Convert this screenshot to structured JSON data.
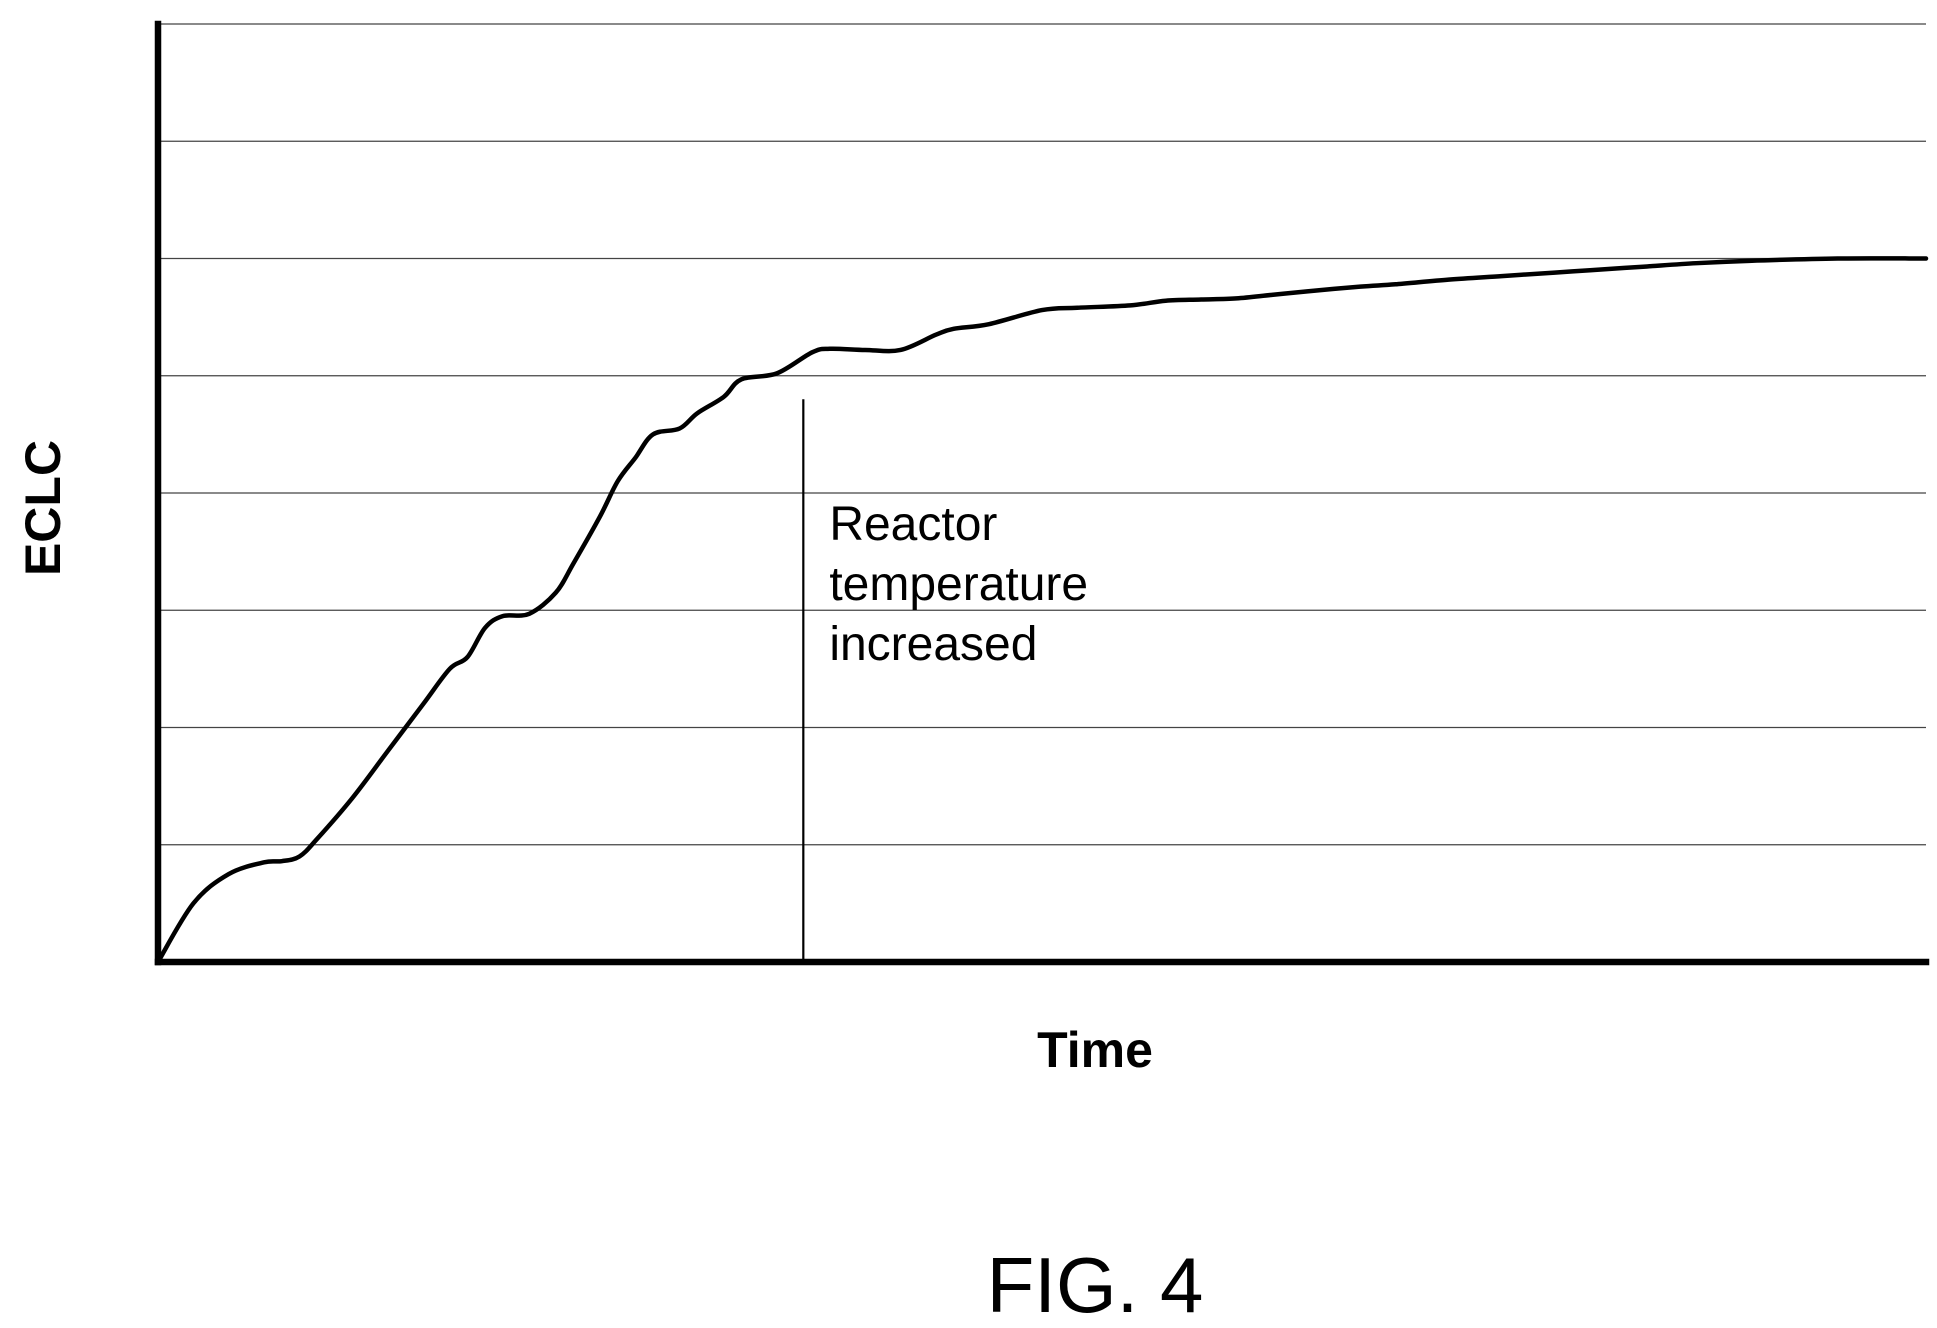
{
  "figure_label": "FIG. 4",
  "chart_data": {
    "type": "line",
    "title": "",
    "xlabel": "Time",
    "ylabel": "ECLC",
    "xlim": [
      0,
      100
    ],
    "ylim": [
      0,
      8
    ],
    "grid": true,
    "gridlines_y": [
      1,
      2,
      3,
      4,
      5,
      6,
      7,
      8
    ],
    "tick_labels": false,
    "series": [
      {
        "x": [
          0,
          2,
          4,
          6,
          7,
          8,
          9,
          11,
          13,
          15,
          16.5,
          17.5,
          18.5,
          19.5,
          21,
          22.5,
          23.5,
          25,
          26,
          27,
          28,
          29.5,
          30.5,
          32,
          33,
          35,
          37,
          38,
          40,
          42,
          44,
          45,
          47,
          50,
          52,
          55,
          57,
          59,
          61,
          63,
          65,
          68,
          70,
          73,
          76,
          79,
          81,
          84,
          87,
          90,
          95,
          100
        ],
        "y": [
          0,
          0.5,
          0.75,
          0.85,
          0.86,
          0.9,
          1.05,
          1.4,
          1.8,
          2.2,
          2.5,
          2.6,
          2.85,
          2.95,
          2.97,
          3.15,
          3.4,
          3.8,
          4.1,
          4.3,
          4.5,
          4.55,
          4.68,
          4.82,
          4.97,
          5.02,
          5.2,
          5.23,
          5.22,
          5.22,
          5.35,
          5.4,
          5.44,
          5.56,
          5.58,
          5.6,
          5.64,
          5.65,
          5.66,
          5.69,
          5.72,
          5.76,
          5.78,
          5.82,
          5.85,
          5.88,
          5.9,
          5.93,
          5.96,
          5.98,
          6.0,
          6.0
        ]
      }
    ],
    "annotations": [
      {
        "text_lines": [
          "Reactor",
          "temperature",
          "increased"
        ],
        "x": 36.5,
        "y_top": 4.8,
        "y_bottom": 0
      }
    ]
  }
}
